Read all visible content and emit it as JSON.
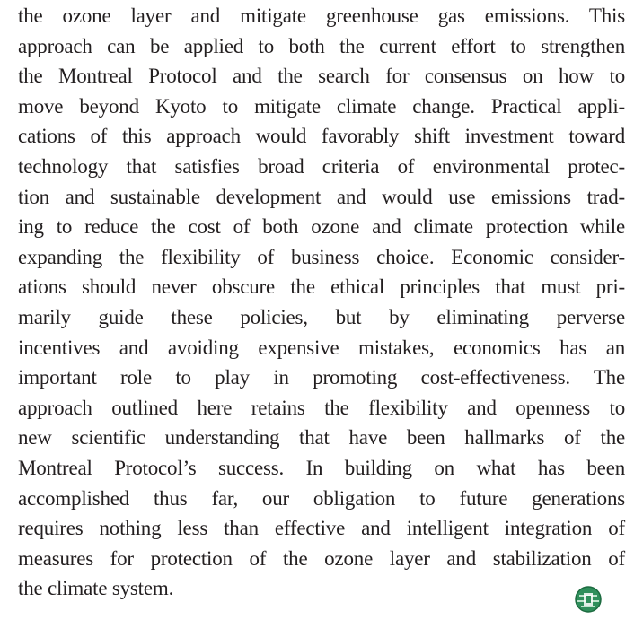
{
  "paragraph": {
    "lines": [
      "the ozone layer and mitigate greenhouse gas emissions. This",
      "approach can be applied to both the current effort to strengthen",
      "the Montreal Protocol and the search for consensus on how to",
      "move beyond Kyoto to mitigate climate change. Practical appli-",
      "cations of this approach would favorably shift investment toward",
      "technology that satisfies broad criteria of environmental protec-",
      "tion and sustainable development and would use emissions trad-",
      "ing to reduce the cost of both ozone and climate protection while",
      "expanding the flexibility of business choice. Economic consider-",
      "ations should never obscure the ethical principles that must pri-",
      "marily guide these policies, but by eliminating perverse",
      "incentives and avoiding expensive mistakes, economics has an",
      "important role to play in promoting cost-effectiveness. The",
      "approach outlined here retains the flexibility and openness to",
      "new scientific understanding that have been hallmarks of the",
      "Montreal Protocol’s success. In building on what has been",
      "accomplished thus far, our obligation to future generations",
      "requires nothing less than effective and intelligent integration of",
      "measures for protection of the ozone layer and stabilization of",
      "the climate system."
    ]
  }
}
